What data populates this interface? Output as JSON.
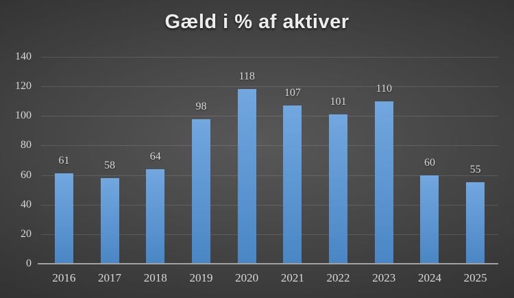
{
  "chart_data": {
    "type": "bar",
    "title": "Gæld i % af aktiver",
    "categories": [
      "2016",
      "2017",
      "2018",
      "2019",
      "2020",
      "2021",
      "2022",
      "2023",
      "2024",
      "2025"
    ],
    "values": [
      61,
      58,
      64,
      98,
      118,
      107,
      101,
      110,
      60,
      55
    ],
    "data_labels": [
      "61",
      "58",
      "64",
      "98",
      "118",
      "107",
      "101",
      "110",
      "60",
      "55"
    ],
    "xlabel": "",
    "ylabel": "",
    "ylim": [
      0,
      140
    ],
    "ytick_step": 20,
    "yticks": [
      0,
      20,
      40,
      60,
      80,
      100,
      120,
      140
    ],
    "grid": true,
    "legend": "none",
    "colors": {
      "bar_gradient_top": "#72a7df",
      "bar_gradient_bottom": "#4a86c5",
      "label_color": "#d9d9d9",
      "title_color": "#ededed",
      "gridline_color": "rgba(255,255,255,0.13)",
      "axis_line_color": "#a3a3a3",
      "background_center": "#585858",
      "background_edge": "#262626"
    }
  }
}
